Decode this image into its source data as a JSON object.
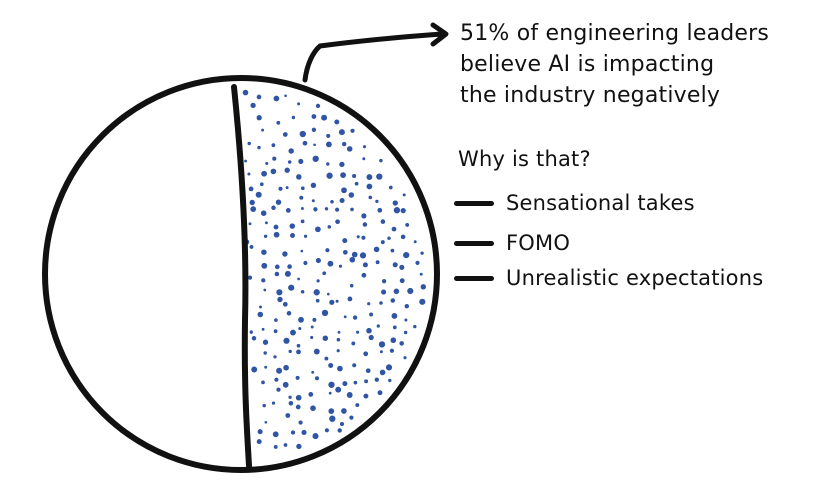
{
  "callout": {
    "lines": [
      "51% of engineering leaders",
      "believe AI is impacting",
      "the industry negatively"
    ]
  },
  "question": "Why is that?",
  "reasons": [
    "Sensational takes",
    "FOMO",
    "Unrealistic expectations"
  ],
  "pie": {
    "negative_share_percent": 51,
    "colors": {
      "outline": "#111111",
      "fill": "#ffffff",
      "dots": "#2f55a4"
    }
  }
}
